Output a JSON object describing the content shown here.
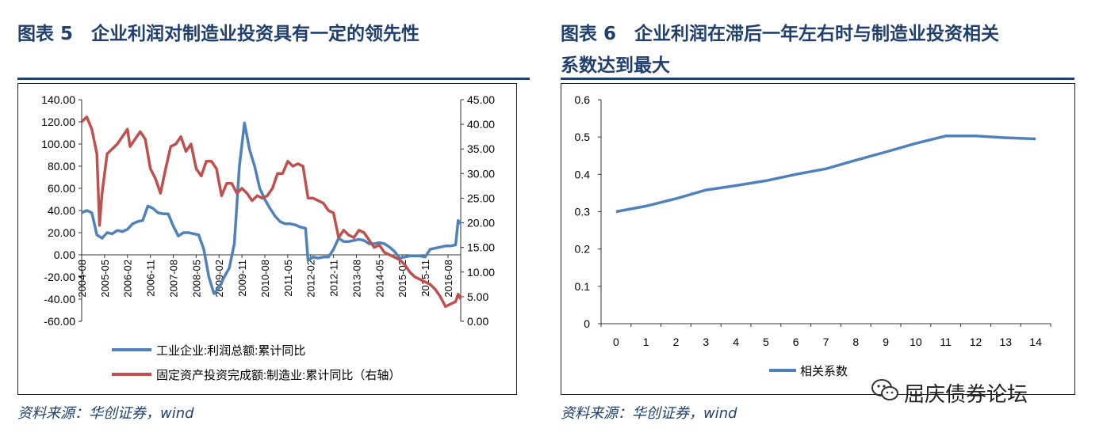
{
  "left": {
    "title": "图表 5　企业利润对制造业投资具有一定的领先性",
    "source": "资料来源：华创证券，wind"
  },
  "right": {
    "title_line1": "图表 6　企业利润在滞后一年左右时与制造业投资相关",
    "title_line2": "系数达到最大",
    "source": "资料来源：华创证券，wind"
  },
  "watermark": "屈庆债券论坛",
  "colors": {
    "title": "#1f3f6e",
    "blue": "#4f81bd",
    "red": "#c0504d"
  },
  "chart_data": [
    {
      "type": "line",
      "dual_axis": true,
      "x_tick_labels": [
        "2004-08",
        "2005-05",
        "2006-02",
        "2006-11",
        "2007-08",
        "2008-05",
        "2009-02",
        "2009-11",
        "2010-08",
        "2011-05",
        "2012-02",
        "2012-11",
        "2013-08",
        "2014-05",
        "2015-02",
        "2015-11",
        "2016-08"
      ],
      "y_left_ticks": [
        "140.00",
        "120.00",
        "100.00",
        "80.00",
        "60.00",
        "40.00",
        "20.00",
        "0.00",
        "-20.00",
        "-40.00",
        "-60.00"
      ],
      "y_right_ticks": [
        "45.00",
        "40.00",
        "35.00",
        "30.00",
        "25.00",
        "20.00",
        "15.00",
        "10.00",
        "5.00",
        "0.00"
      ],
      "ylim_left": [
        -60,
        140
      ],
      "ylim_right": [
        0,
        45
      ],
      "grid": false,
      "legend_position": "bottom",
      "series": [
        {
          "name": "工业企业:利润总额:累计同比",
          "axis": "left",
          "color": "#4f81bd",
          "points": [
            [
              "2004-08",
              38
            ],
            [
              "2004-10",
              40
            ],
            [
              "2004-12",
              38
            ],
            [
              "2005-02",
              18
            ],
            [
              "2005-04",
              15
            ],
            [
              "2005-06",
              20
            ],
            [
              "2005-08",
              19
            ],
            [
              "2005-10",
              22
            ],
            [
              "2005-12",
              21
            ],
            [
              "2006-02",
              23
            ],
            [
              "2006-04",
              28
            ],
            [
              "2006-06",
              30
            ],
            [
              "2006-08",
              31
            ],
            [
              "2006-10",
              44
            ],
            [
              "2006-12",
              42
            ],
            [
              "2007-02",
              38
            ],
            [
              "2007-04",
              37
            ],
            [
              "2007-06",
              37
            ],
            [
              "2007-08",
              26
            ],
            [
              "2007-10",
              17
            ],
            [
              "2007-12",
              20
            ],
            [
              "2008-02",
              20
            ],
            [
              "2008-04",
              19
            ],
            [
              "2008-06",
              18
            ],
            [
              "2008-08",
              5
            ],
            [
              "2008-10",
              -20
            ],
            [
              "2008-12",
              -35
            ],
            [
              "2009-02",
              -30
            ],
            [
              "2009-04",
              -20
            ],
            [
              "2009-06",
              -12
            ],
            [
              "2009-08",
              10
            ],
            [
              "2009-10",
              80
            ],
            [
              "2009-12",
              119
            ],
            [
              "2010-02",
              95
            ],
            [
              "2010-04",
              80
            ],
            [
              "2010-06",
              60
            ],
            [
              "2010-08",
              50
            ],
            [
              "2010-10",
              42
            ],
            [
              "2010-12",
              35
            ],
            [
              "2011-02",
              30
            ],
            [
              "2011-04",
              28
            ],
            [
              "2011-06",
              28
            ],
            [
              "2011-08",
              27
            ],
            [
              "2011-10",
              25
            ],
            [
              "2011-12",
              24
            ],
            [
              "2012-01",
              -5
            ],
            [
              "2012-03",
              -2
            ],
            [
              "2012-05",
              -3
            ],
            [
              "2012-07",
              -2
            ],
            [
              "2012-09",
              -2
            ],
            [
              "2012-11",
              5
            ],
            [
              "2013-01",
              15
            ],
            [
              "2013-03",
              12
            ],
            [
              "2013-05",
              12
            ],
            [
              "2013-07",
              13
            ],
            [
              "2013-09",
              14
            ],
            [
              "2013-11",
              13
            ],
            [
              "2014-01",
              10
            ],
            [
              "2014-03",
              10
            ],
            [
              "2014-05",
              11
            ],
            [
              "2014-07",
              10
            ],
            [
              "2014-09",
              7
            ],
            [
              "2014-11",
              3
            ],
            [
              "2015-01",
              -3
            ],
            [
              "2015-03",
              -2
            ],
            [
              "2015-05",
              -1
            ],
            [
              "2015-07",
              -1
            ],
            [
              "2015-09",
              -1
            ],
            [
              "2015-11",
              -2
            ],
            [
              "2016-01",
              5
            ],
            [
              "2016-03",
              6
            ],
            [
              "2016-05",
              7
            ],
            [
              "2016-07",
              8
            ],
            [
              "2016-09",
              8
            ],
            [
              "2016-11",
              9
            ],
            [
              "2016-12",
              31
            ],
            [
              "2017-01",
              28
            ]
          ]
        },
        {
          "name": "固定资产投资完成额:制造业:累计同比（右轴）",
          "axis": "right",
          "color": "#c0504d",
          "points": [
            [
              "2004-08",
              40.5
            ],
            [
              "2004-10",
              41.5
            ],
            [
              "2004-12",
              39
            ],
            [
              "2005-02",
              34
            ],
            [
              "2005-03",
              19.5
            ],
            [
              "2005-04",
              26
            ],
            [
              "2005-06",
              34
            ],
            [
              "2005-08",
              35
            ],
            [
              "2005-10",
              36
            ],
            [
              "2005-12",
              37.5
            ],
            [
              "2006-02",
              39
            ],
            [
              "2006-03",
              35.5
            ],
            [
              "2006-05",
              37
            ],
            [
              "2006-07",
              38.5
            ],
            [
              "2006-09",
              37
            ],
            [
              "2006-11",
              31
            ],
            [
              "2007-01",
              29
            ],
            [
              "2007-03",
              26
            ],
            [
              "2007-05",
              31
            ],
            [
              "2007-07",
              35.5
            ],
            [
              "2007-09",
              36
            ],
            [
              "2007-11",
              37.5
            ],
            [
              "2008-01",
              34.5
            ],
            [
              "2008-03",
              36
            ],
            [
              "2008-05",
              31
            ],
            [
              "2008-07",
              29.5
            ],
            [
              "2008-09",
              32.5
            ],
            [
              "2008-11",
              32.5
            ],
            [
              "2009-01",
              31
            ],
            [
              "2009-03",
              25.5
            ],
            [
              "2009-05",
              28
            ],
            [
              "2009-07",
              28
            ],
            [
              "2009-09",
              26
            ],
            [
              "2009-11",
              27
            ],
            [
              "2010-01",
              26
            ],
            [
              "2010-03",
              24.5
            ],
            [
              "2010-05",
              25.5
            ],
            [
              "2010-07",
              25
            ],
            [
              "2010-09",
              25.5
            ],
            [
              "2010-11",
              27
            ],
            [
              "2011-01",
              30
            ],
            [
              "2011-03",
              30
            ],
            [
              "2011-05",
              32.5
            ],
            [
              "2011-07",
              31.5
            ],
            [
              "2011-09",
              32
            ],
            [
              "2011-11",
              31.5
            ],
            [
              "2012-01",
              25
            ],
            [
              "2012-03",
              25
            ],
            [
              "2012-05",
              24.5
            ],
            [
              "2012-07",
              24
            ],
            [
              "2012-09",
              22.5
            ],
            [
              "2012-11",
              22
            ],
            [
              "2013-01",
              17
            ],
            [
              "2013-03",
              18.5
            ],
            [
              "2013-05",
              17.5
            ],
            [
              "2013-07",
              17
            ],
            [
              "2013-09",
              18.5
            ],
            [
              "2013-11",
              18
            ],
            [
              "2014-01",
              16.5
            ],
            [
              "2014-03",
              15
            ],
            [
              "2014-05",
              15.5
            ],
            [
              "2014-07",
              14
            ],
            [
              "2014-09",
              13.5
            ],
            [
              "2014-11",
              13
            ],
            [
              "2015-01",
              12.5
            ],
            [
              "2015-03",
              11.5
            ],
            [
              "2015-05",
              10
            ],
            [
              "2015-07",
              9
            ],
            [
              "2015-09",
              8.5
            ],
            [
              "2015-11",
              8
            ],
            [
              "2016-01",
              7.5
            ],
            [
              "2016-03",
              6.5
            ],
            [
              "2016-05",
              5
            ],
            [
              "2016-07",
              3
            ],
            [
              "2016-09",
              3.5
            ],
            [
              "2016-11",
              4
            ],
            [
              "2016-12",
              5.5
            ],
            [
              "2017-01",
              4.5
            ]
          ]
        }
      ]
    },
    {
      "type": "line",
      "x": [
        0,
        1,
        2,
        3,
        4,
        5,
        6,
        7,
        8,
        9,
        10,
        11,
        12,
        13,
        14
      ],
      "series": [
        {
          "name": "相关系数",
          "color": "#4f81bd",
          "values": [
            0.3,
            0.315,
            0.335,
            0.358,
            0.37,
            0.383,
            0.4,
            0.415,
            0.438,
            0.46,
            0.483,
            0.503,
            0.503,
            0.498,
            0.495
          ]
        }
      ],
      "y_ticks": [
        "0.6",
        "0.5",
        "0.4",
        "0.3",
        "0.2",
        "0.1",
        "0"
      ],
      "x_tick_labels": [
        "0",
        "1",
        "2",
        "3",
        "4",
        "5",
        "6",
        "7",
        "8",
        "9",
        "10",
        "11",
        "12",
        "13",
        "14"
      ],
      "ylim": [
        0,
        0.6
      ],
      "grid": false,
      "legend_position": "bottom"
    }
  ]
}
